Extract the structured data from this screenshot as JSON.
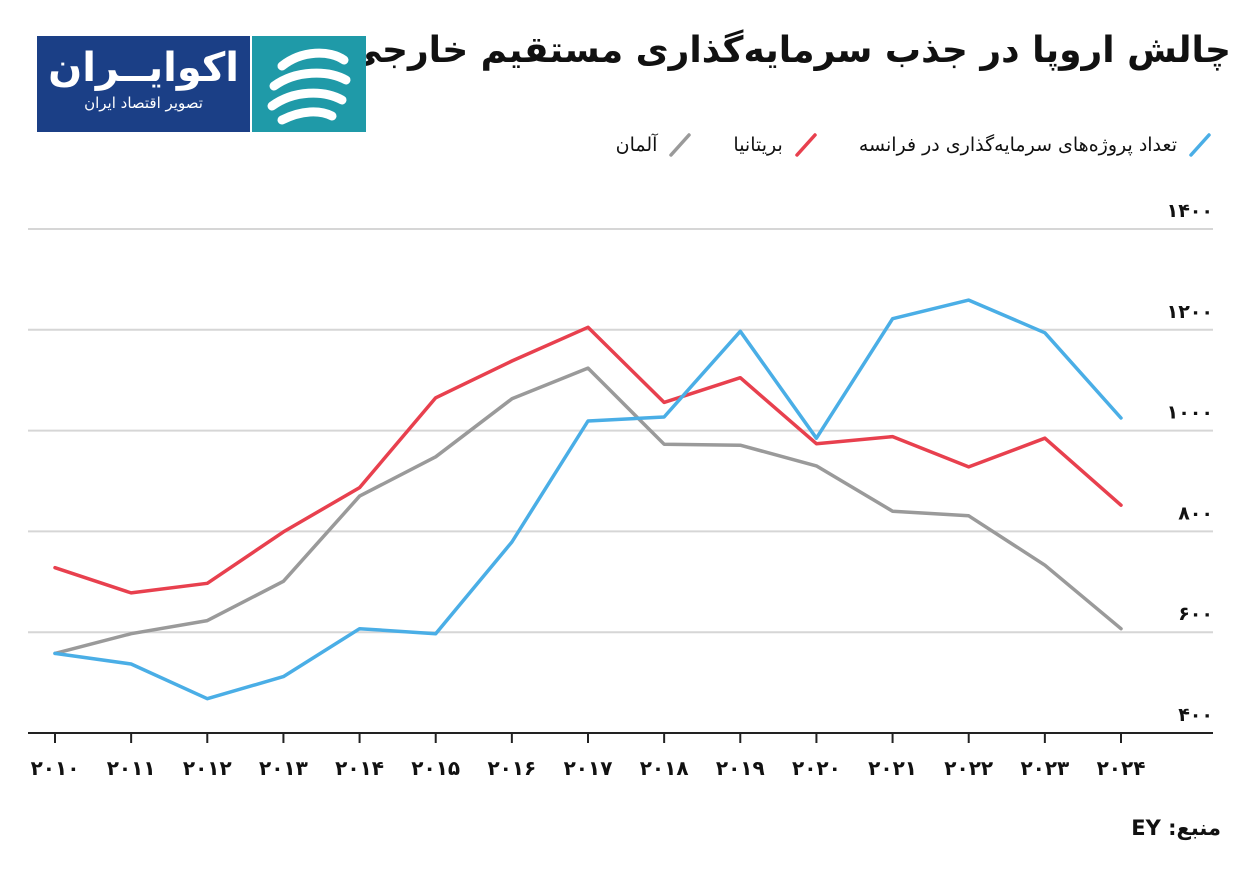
{
  "title": "چالش اروپا در جذب سرمایه‌گذاری مستقیم خارجی",
  "logo": {
    "name": "اکوایــران",
    "tagline": "تصویر اقتصاد ایران"
  },
  "source": "منبع: EY",
  "icons": {
    "logo_emblem": "wave-stripes-icon",
    "legend_marker": "slash-icon"
  },
  "colors": {
    "france": "#4aaee6",
    "uk": "#e8404e",
    "germany": "#9a9a9a",
    "grid": "#d6d6d6",
    "axis": "#222222"
  },
  "chart_data": {
    "type": "line",
    "x": [
      "۲۰۱۰",
      "۲۰۱۱",
      "۲۰۱۲",
      "۲۰۱۳",
      "۲۰۱۴",
      "۲۰۱۵",
      "۲۰۱۶",
      "۲۰۱۷",
      "۲۰۱۸",
      "۲۰۱۹",
      "۲۰۲۰",
      "۲۰۲۱",
      "۲۰۲۲",
      "۲۰۲۳",
      "۲۰۲۴"
    ],
    "y_ticks": [
      400,
      600,
      800,
      1000,
      1200,
      1400
    ],
    "y_tick_labels": [
      "۴۰۰",
      "۶۰۰",
      "۸۰۰",
      "۱۰۰۰",
      "۱۲۰۰",
      "۱۴۰۰"
    ],
    "ylim": [
      400,
      1400
    ],
    "grid": "horizontal",
    "legend_position": "top",
    "series": [
      {
        "key": "france",
        "name": "تعداد پروژه‌های سرمایه‌گذاری در فرانسه",
        "values": [
          558,
          537,
          468,
          512,
          607,
          597,
          779,
          1019,
          1027,
          1197,
          985,
          1222,
          1259,
          1194,
          1025
        ]
      },
      {
        "key": "uk",
        "name": "بریتانیا",
        "values": [
          728,
          678,
          697,
          799,
          887,
          1065,
          1138,
          1205,
          1056,
          1105,
          974,
          988,
          928,
          985,
          852
        ]
      },
      {
        "key": "germany",
        "name": "آلمان",
        "values": [
          558,
          597,
          623,
          701,
          870,
          948,
          1063,
          1124,
          973,
          971,
          930,
          840,
          831,
          733,
          607
        ]
      }
    ]
  }
}
